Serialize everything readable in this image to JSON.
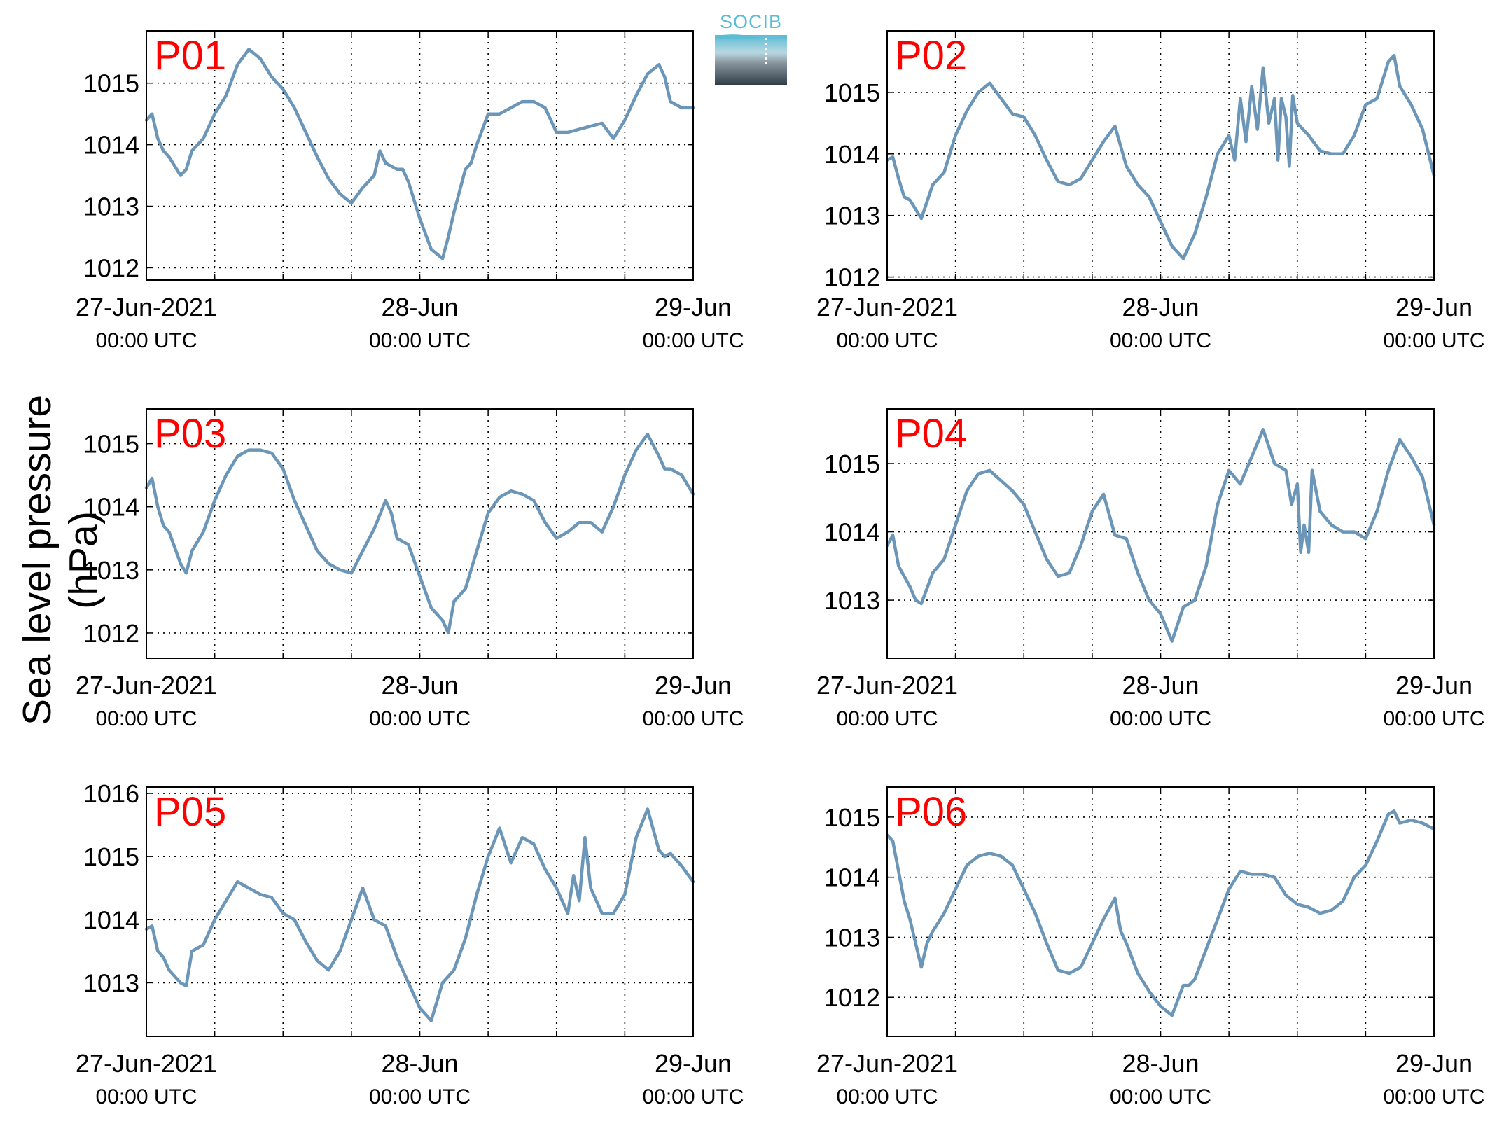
{
  "figure": {
    "ylabel": "Sea level pressure (hPa)",
    "logo_text": "SOCIB",
    "colors": {
      "line": "#6b96b8",
      "station_label": "#ff0000",
      "axis": "#000000",
      "grid": "#000000"
    }
  },
  "chart_data": [
    {
      "type": "line",
      "station": "P01",
      "xlabel": "",
      "ylabel": "Sea level pressure (hPa)",
      "x_ticks": [
        {
          "top": "27-Jun-2021",
          "bottom": "00:00 UTC"
        },
        {
          "top": "28-Jun",
          "bottom": "00:00 UTC"
        },
        {
          "top": "29-Jun",
          "bottom": "00:00 UTC"
        }
      ],
      "xlim_hours": [
        0,
        48
      ],
      "ylim": [
        1011.8,
        1015.85
      ],
      "y_ticks": [
        1012,
        1013,
        1014,
        1015
      ],
      "grid": true,
      "series": [
        {
          "x_hours": [
            0,
            0.5,
            1,
            1.5,
            2,
            3,
            3.5,
            4,
            5,
            6,
            7,
            8,
            9,
            10,
            11,
            12,
            13,
            14,
            15,
            16,
            17,
            18,
            19,
            20,
            20.5,
            21,
            22,
            22.5,
            23,
            24,
            25,
            26,
            26.5,
            27,
            28,
            28.5,
            29,
            30,
            31,
            32,
            33,
            34,
            35,
            36,
            37,
            38,
            39,
            40,
            41,
            42,
            43,
            44,
            45,
            45.5,
            46,
            47,
            48
          ],
          "values": [
            1014.4,
            1014.5,
            1014.1,
            1013.9,
            1013.8,
            1013.5,
            1013.6,
            1013.9,
            1014.1,
            1014.5,
            1014.8,
            1015.3,
            1015.55,
            1015.4,
            1015.1,
            1014.9,
            1014.6,
            1014.2,
            1013.8,
            1013.45,
            1013.2,
            1013.05,
            1013.3,
            1013.5,
            1013.9,
            1013.7,
            1013.6,
            1013.6,
            1013.4,
            1012.8,
            1012.3,
            1012.15,
            1012.5,
            1012.9,
            1013.6,
            1013.7,
            1014.0,
            1014.5,
            1014.5,
            1014.6,
            1014.7,
            1014.7,
            1014.6,
            1014.2,
            1014.2,
            1014.25,
            1014.3,
            1014.35,
            1014.1,
            1014.4,
            1014.8,
            1015.15,
            1015.3,
            1015.1,
            1014.7,
            1014.6,
            1014.6
          ]
        }
      ]
    },
    {
      "type": "line",
      "station": "P02",
      "xlabel": "",
      "ylabel": "Sea level pressure (hPa)",
      "x_ticks": [
        {
          "top": "27-Jun-2021",
          "bottom": "00:00 UTC"
        },
        {
          "top": "28-Jun",
          "bottom": "00:00 UTC"
        },
        {
          "top": "29-Jun",
          "bottom": "00:00 UTC"
        }
      ],
      "xlim_hours": [
        0,
        48
      ],
      "ylim": [
        1011.95,
        1016.0
      ],
      "y_ticks": [
        1012,
        1013,
        1014,
        1015
      ],
      "grid": true,
      "series": [
        {
          "x_hours": [
            0,
            0.5,
            1,
            1.5,
            2,
            2.5,
            3,
            4,
            5,
            6,
            7,
            8,
            9,
            10,
            11,
            12,
            13,
            14,
            15,
            16,
            17,
            18,
            19,
            20,
            21,
            22,
            23,
            24,
            25,
            26,
            27,
            28,
            29,
            30,
            30.5,
            31,
            31.5,
            32,
            32.5,
            33,
            33.5,
            34,
            34.3,
            34.6,
            35,
            35.3,
            35.6,
            36,
            37,
            38,
            39,
            40,
            41,
            42,
            43,
            44,
            44.5,
            45,
            46,
            47,
            48
          ],
          "values": [
            1013.9,
            1013.95,
            1013.6,
            1013.3,
            1013.25,
            1013.1,
            1012.95,
            1013.5,
            1013.7,
            1014.3,
            1014.7,
            1015.0,
            1015.15,
            1014.9,
            1014.65,
            1014.6,
            1014.3,
            1013.9,
            1013.55,
            1013.5,
            1013.6,
            1013.9,
            1014.2,
            1014.45,
            1013.8,
            1013.5,
            1013.3,
            1012.9,
            1012.5,
            1012.3,
            1012.7,
            1013.3,
            1014.0,
            1014.3,
            1013.9,
            1014.9,
            1014.2,
            1015.1,
            1014.4,
            1015.4,
            1014.5,
            1014.9,
            1013.9,
            1014.9,
            1014.6,
            1013.8,
            1014.95,
            1014.5,
            1014.3,
            1014.05,
            1014.0,
            1014.0,
            1014.3,
            1014.8,
            1014.9,
            1015.5,
            1015.6,
            1015.1,
            1014.8,
            1014.4,
            1013.65
          ]
        }
      ]
    },
    {
      "type": "line",
      "station": "P03",
      "xlabel": "",
      "ylabel": "Sea level pressure (hPa)",
      "x_ticks": [
        {
          "top": "27-Jun-2021",
          "bottom": "00:00 UTC"
        },
        {
          "top": "28-Jun",
          "bottom": "00:00 UTC"
        },
        {
          "top": "29-Jun",
          "bottom": "00:00 UTC"
        }
      ],
      "xlim_hours": [
        0,
        48
      ],
      "ylim": [
        1011.6,
        1015.55
      ],
      "y_ticks": [
        1012,
        1013,
        1014,
        1015
      ],
      "grid": true,
      "series": [
        {
          "x_hours": [
            0,
            0.5,
            1,
            1.5,
            2,
            3,
            3.5,
            4,
            5,
            6,
            7,
            8,
            9,
            10,
            11,
            12,
            13,
            14,
            15,
            16,
            17,
            18,
            19,
            20,
            21,
            21.5,
            22,
            23,
            24,
            25,
            26,
            26.5,
            27,
            28,
            29,
            30,
            31,
            32,
            33,
            34,
            35,
            36,
            37,
            38,
            39,
            40,
            41,
            42,
            43,
            44,
            45,
            45.5,
            46,
            47,
            48
          ],
          "values": [
            1014.3,
            1014.45,
            1014.0,
            1013.7,
            1013.6,
            1013.1,
            1012.95,
            1013.3,
            1013.6,
            1014.1,
            1014.5,
            1014.8,
            1014.9,
            1014.9,
            1014.85,
            1014.6,
            1014.1,
            1013.7,
            1013.3,
            1013.1,
            1013.0,
            1012.95,
            1013.3,
            1013.65,
            1014.1,
            1013.9,
            1013.5,
            1013.4,
            1012.9,
            1012.4,
            1012.2,
            1012.0,
            1012.5,
            1012.7,
            1013.3,
            1013.9,
            1014.15,
            1014.25,
            1014.2,
            1014.1,
            1013.75,
            1013.5,
            1013.6,
            1013.75,
            1013.75,
            1013.6,
            1014.0,
            1014.5,
            1014.9,
            1015.15,
            1014.8,
            1014.6,
            1014.6,
            1014.5,
            1014.2
          ]
        }
      ]
    },
    {
      "type": "line",
      "station": "P04",
      "xlabel": "",
      "ylabel": "Sea level pressure (hPa)",
      "x_ticks": [
        {
          "top": "27-Jun-2021",
          "bottom": "00:00 UTC"
        },
        {
          "top": "28-Jun",
          "bottom": "00:00 UTC"
        },
        {
          "top": "29-Jun",
          "bottom": "00:00 UTC"
        }
      ],
      "xlim_hours": [
        0,
        48
      ],
      "ylim": [
        1012.15,
        1015.8
      ],
      "y_ticks": [
        1013,
        1014,
        1015
      ],
      "grid": true,
      "series": [
        {
          "x_hours": [
            0,
            0.5,
            1,
            1.5,
            2,
            2.5,
            3,
            4,
            5,
            6,
            7,
            8,
            9,
            10,
            11,
            12,
            13,
            14,
            15,
            16,
            17,
            18,
            19,
            20,
            21,
            22,
            23,
            24,
            25,
            26,
            27,
            28,
            29,
            30,
            31,
            32,
            33,
            34,
            35,
            35.5,
            36,
            36.3,
            36.6,
            37,
            37.3,
            38,
            39,
            40,
            41,
            42,
            43,
            44,
            45,
            46,
            47,
            48
          ],
          "values": [
            1013.8,
            1013.95,
            1013.5,
            1013.35,
            1013.2,
            1013.0,
            1012.95,
            1013.4,
            1013.6,
            1014.1,
            1014.6,
            1014.85,
            1014.9,
            1014.75,
            1014.6,
            1014.4,
            1014.0,
            1013.6,
            1013.35,
            1013.4,
            1013.8,
            1014.3,
            1014.55,
            1013.95,
            1013.9,
            1013.4,
            1013.0,
            1012.8,
            1012.4,
            1012.9,
            1013.0,
            1013.5,
            1014.4,
            1014.9,
            1014.7,
            1015.1,
            1015.5,
            1015.0,
            1014.9,
            1014.4,
            1014.7,
            1013.7,
            1014.1,
            1013.7,
            1014.9,
            1014.3,
            1014.1,
            1014.0,
            1014.0,
            1013.9,
            1014.3,
            1014.9,
            1015.35,
            1015.1,
            1014.8,
            1014.1
          ]
        }
      ]
    },
    {
      "type": "line",
      "station": "P05",
      "xlabel": "",
      "ylabel": "Sea level pressure (hPa)",
      "x_ticks": [
        {
          "top": "27-Jun-2021",
          "bottom": "00:00 UTC"
        },
        {
          "top": "28-Jun",
          "bottom": "00:00 UTC"
        },
        {
          "top": "29-Jun",
          "bottom": "00:00 UTC"
        }
      ],
      "xlim_hours": [
        0,
        48
      ],
      "ylim": [
        1012.15,
        1016.1
      ],
      "y_ticks": [
        1013,
        1014,
        1015,
        1016
      ],
      "grid": true,
      "series": [
        {
          "x_hours": [
            0,
            0.5,
            1,
            1.5,
            2,
            3,
            3.5,
            4,
            5,
            6,
            7,
            8,
            9,
            10,
            11,
            12,
            13,
            14,
            15,
            16,
            17,
            18,
            19,
            20,
            21,
            22,
            23,
            24,
            25,
            26,
            27,
            28,
            29,
            30,
            31,
            32,
            33,
            34,
            35,
            36,
            37,
            37.5,
            38,
            38.5,
            39,
            39.5,
            40,
            41,
            42,
            43,
            44,
            45,
            45.5,
            46,
            47,
            48
          ],
          "values": [
            1013.85,
            1013.9,
            1013.5,
            1013.4,
            1013.2,
            1013.0,
            1012.95,
            1013.5,
            1013.6,
            1014.0,
            1014.3,
            1014.6,
            1014.5,
            1014.4,
            1014.35,
            1014.1,
            1014.0,
            1013.65,
            1013.35,
            1013.2,
            1013.5,
            1014.0,
            1014.5,
            1014.0,
            1013.9,
            1013.4,
            1013.0,
            1012.6,
            1012.4,
            1013.0,
            1013.2,
            1013.7,
            1014.4,
            1015.0,
            1015.45,
            1014.9,
            1015.3,
            1015.2,
            1014.8,
            1014.5,
            1014.1,
            1014.7,
            1014.3,
            1015.3,
            1014.5,
            1014.3,
            1014.1,
            1014.1,
            1014.4,
            1015.3,
            1015.75,
            1015.1,
            1015.0,
            1015.05,
            1014.85,
            1014.6
          ]
        }
      ]
    },
    {
      "type": "line",
      "station": "P06",
      "xlabel": "",
      "ylabel": "Sea level pressure (hPa)",
      "x_ticks": [
        {
          "top": "27-Jun-2021",
          "bottom": "00:00 UTC"
        },
        {
          "top": "28-Jun",
          "bottom": "00:00 UTC"
        },
        {
          "top": "29-Jun",
          "bottom": "00:00 UTC"
        }
      ],
      "xlim_hours": [
        0,
        48
      ],
      "ylim": [
        1011.35,
        1015.5
      ],
      "y_ticks": [
        1012,
        1013,
        1014,
        1015
      ],
      "grid": true,
      "series": [
        {
          "x_hours": [
            0,
            0.5,
            1,
            1.5,
            2,
            3,
            3.5,
            4,
            5,
            6,
            7,
            8,
            9,
            10,
            11,
            12,
            13,
            14,
            15,
            16,
            17,
            18,
            19,
            20,
            20.5,
            21,
            22,
            23,
            24,
            25,
            26,
            26.5,
            27,
            28,
            29,
            30,
            31,
            32,
            33,
            34,
            35,
            36,
            37,
            38,
            39,
            40,
            41,
            42,
            43,
            44,
            44.5,
            45,
            46,
            47,
            48
          ],
          "values": [
            1014.7,
            1014.6,
            1014.1,
            1013.6,
            1013.3,
            1012.5,
            1012.9,
            1013.1,
            1013.4,
            1013.8,
            1014.2,
            1014.35,
            1014.4,
            1014.35,
            1014.2,
            1013.8,
            1013.4,
            1012.9,
            1012.45,
            1012.4,
            1012.5,
            1012.9,
            1013.3,
            1013.65,
            1013.1,
            1012.9,
            1012.4,
            1012.1,
            1011.85,
            1011.7,
            1012.2,
            1012.2,
            1012.3,
            1012.8,
            1013.3,
            1013.8,
            1014.1,
            1014.05,
            1014.05,
            1014.0,
            1013.7,
            1013.55,
            1013.5,
            1013.4,
            1013.45,
            1013.6,
            1014.0,
            1014.2,
            1014.6,
            1015.05,
            1015.1,
            1014.9,
            1014.95,
            1014.9,
            1014.8
          ]
        }
      ]
    }
  ]
}
